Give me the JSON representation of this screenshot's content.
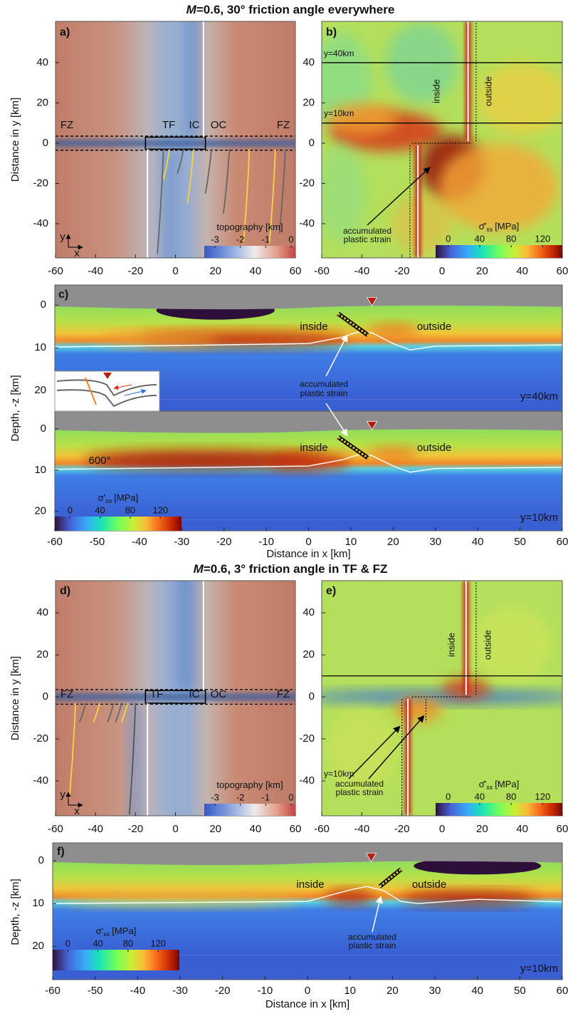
{
  "titles": [
    {
      "italic": "M",
      "text": "=0.6, 30° friction angle everywhere"
    },
    {
      "italic": "M",
      "text": "=0.6, 3° friction angle in TF & FZ"
    }
  ],
  "chart_data": [
    {
      "type": "map",
      "label": "a)",
      "xlim": [
        -60,
        60
      ],
      "xticks": [
        -60,
        -40,
        -20,
        0,
        20,
        40,
        60
      ],
      "ylim": [
        -57,
        60.5
      ],
      "yticks": [
        -40,
        -20,
        0,
        20,
        40
      ],
      "ylabel": "Distance in y [km]",
      "annotations": [
        "FZ",
        "TF",
        "IC",
        "OC",
        "FZ"
      ],
      "axis_glyph": [
        "y",
        "x"
      ],
      "colorbar": {
        "label": "topography [km]",
        "lim": [
          -3.42,
          0.17
        ],
        "ticks": [
          -3,
          -2,
          -1,
          0
        ]
      }
    },
    {
      "type": "map",
      "label": "b)",
      "xlim": [
        -60,
        60
      ],
      "xticks": [
        -60,
        -40,
        -20,
        0,
        20,
        40,
        60
      ],
      "ylim": [
        -57,
        60.5
      ],
      "yticks": [
        -40,
        -20,
        0,
        20,
        40
      ],
      "annotations": [
        "y=40km",
        "y=10km",
        "inside",
        "outside",
        "accumulated",
        "plastic strain"
      ],
      "colorbar": {
        "label": "σ̄'",
        "label_sub": "xx",
        "label_unit": "[MPa]",
        "lim": [
          -16,
          145
        ],
        "ticks": [
          0,
          40,
          80,
          120
        ]
      }
    },
    {
      "type": "section",
      "label": "c)",
      "xlim": [
        -60,
        60
      ],
      "xticks": [
        -60,
        -50,
        -40,
        -30,
        -20,
        -10,
        0,
        10,
        20,
        30,
        40,
        50,
        60
      ],
      "xlabel": "Distance in x [km]",
      "ylabel": "Depth, -z [km]",
      "panels": [
        {
          "ylim": [
            24.8,
            -4.7
          ],
          "yticks": [
            0,
            10,
            20
          ],
          "annotations": [
            "inside",
            "outside",
            "accumulated",
            "plastic strain",
            "y=40km"
          ]
        },
        {
          "ylim": [
            24.7,
            -4.3
          ],
          "yticks": [
            0,
            10,
            20
          ],
          "annotations": [
            "inside",
            "outside",
            "600°",
            "y=10km"
          ]
        }
      ],
      "colorbar": {
        "label": "σ'",
        "label_sub": "xx",
        "label_unit": "[MPa]",
        "lim": [
          -20,
          148
        ],
        "ticks": [
          0,
          40,
          80,
          120
        ]
      }
    },
    {
      "type": "map",
      "label": "d)",
      "xlim": [
        -60,
        60
      ],
      "xticks": [
        -60,
        -40,
        -20,
        0,
        20,
        40,
        60
      ],
      "ylim": [
        -56.6,
        55.3
      ],
      "yticks": [
        -40,
        -20,
        0,
        20,
        40
      ],
      "ylabel": "Distance in y [km]",
      "annotations": [
        "FZ",
        "TF",
        "IC",
        "OC",
        "FZ"
      ],
      "axis_glyph": [
        "y",
        "x"
      ],
      "colorbar": {
        "label": "topography [km]",
        "lim": [
          -3.42,
          0.17
        ],
        "ticks": [
          -3,
          -2,
          -1,
          0
        ]
      }
    },
    {
      "type": "map",
      "label": "e)",
      "xlim": [
        -60,
        60
      ],
      "xticks": [
        -60,
        -40,
        -20,
        0,
        20,
        40,
        60
      ],
      "ylim": [
        -56.6,
        55.3
      ],
      "yticks": [
        -40,
        -20,
        0,
        20,
        40
      ],
      "annotations": [
        "inside",
        "outside",
        "y=10km",
        "accumulated",
        "plastic strain"
      ],
      "colorbar": {
        "label": "σ̄'",
        "label_sub": "xx",
        "label_unit": "[MPa]",
        "lim": [
          -16,
          145
        ],
        "ticks": [
          0,
          40,
          80,
          120
        ]
      }
    },
    {
      "type": "section",
      "label": "f)",
      "xlim": [
        -60,
        60
      ],
      "xticks": [
        -60,
        -50,
        -40,
        -30,
        -20,
        -10,
        0,
        10,
        20,
        30,
        40,
        50,
        60
      ],
      "xlabel": "Distance in x [km]",
      "ylabel": "Depth, -z [km]",
      "panels": [
        {
          "ylim": [
            27.8,
            -4.2
          ],
          "yticks": [
            0,
            10,
            20
          ],
          "annotations": [
            "inside",
            "outside",
            "accumulated",
            "plastic strain",
            "y=10km"
          ]
        }
      ],
      "colorbar": {
        "label": "σ'",
        "label_sub": "xx",
        "label_unit": "[MPa]",
        "lim": [
          -20,
          148
        ],
        "ticks": [
          0,
          40,
          80,
          120
        ]
      }
    }
  ]
}
